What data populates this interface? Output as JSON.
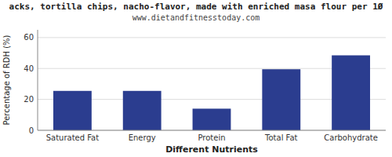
{
  "chart_data": {
    "type": "bar",
    "title": "acks, tortilla chips, nacho-flavor, made with enriched masa flour per 1Ø",
    "subtitle": "www.dietandfitnesstoday.com",
    "categories": [
      "Saturated Fat",
      "Energy",
      "Protein",
      "Total Fat",
      "Carbohydrate"
    ],
    "values": [
      25.5,
      25.5,
      14.0,
      39.5,
      48.5
    ],
    "color": "#2b3d8f",
    "ylabel": "Percentage of RDH (%)",
    "xlabel": "Different Nutrients",
    "ylim": [
      0,
      65
    ],
    "yticks": [
      0,
      20,
      40,
      60
    ],
    "grid": true
  }
}
